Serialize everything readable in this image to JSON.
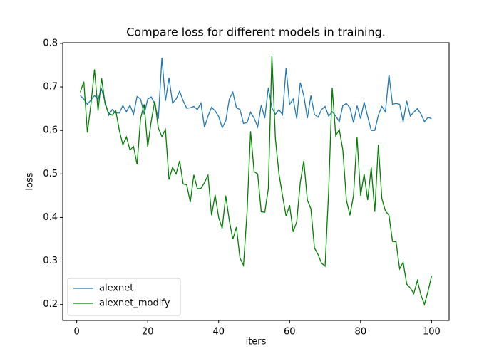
{
  "chart_data": {
    "type": "line",
    "title": "Compare loss for different models in training.",
    "xlabel": "iters",
    "ylabel": "loss",
    "x": [
      1,
      2,
      3,
      4,
      5,
      6,
      7,
      8,
      9,
      10,
      11,
      12,
      13,
      14,
      15,
      16,
      17,
      18,
      19,
      20,
      21,
      22,
      23,
      24,
      25,
      26,
      27,
      28,
      29,
      30,
      31,
      32,
      33,
      34,
      35,
      36,
      37,
      38,
      39,
      40,
      41,
      42,
      43,
      44,
      45,
      46,
      47,
      48,
      49,
      50,
      51,
      52,
      53,
      54,
      55,
      56,
      57,
      58,
      59,
      60,
      61,
      62,
      63,
      64,
      65,
      66,
      67,
      68,
      69,
      70,
      71,
      72,
      73,
      74,
      75,
      76,
      77,
      78,
      79,
      80,
      81,
      82,
      83,
      84,
      85,
      86,
      87,
      88,
      89,
      90,
      91,
      92,
      93,
      94,
      95,
      96,
      97,
      98,
      99,
      100
    ],
    "series": [
      {
        "name": "alexnet",
        "color": "#1f77b4",
        "values": [
          0.68,
          0.672,
          0.66,
          0.67,
          0.68,
          0.672,
          0.695,
          0.665,
          0.635,
          0.648,
          0.64,
          0.64,
          0.657,
          0.643,
          0.658,
          0.637,
          0.678,
          0.672,
          0.637,
          0.672,
          0.677,
          0.66,
          0.627,
          0.767,
          0.668,
          0.721,
          0.663,
          0.672,
          0.69,
          0.668,
          0.651,
          0.652,
          0.655,
          0.648,
          0.663,
          0.607,
          0.633,
          0.653,
          0.645,
          0.632,
          0.606,
          0.622,
          0.672,
          0.688,
          0.652,
          0.648,
          0.616,
          0.618,
          0.642,
          0.628,
          0.608,
          0.658,
          0.628,
          0.698,
          0.652,
          0.637,
          0.648,
          0.636,
          0.743,
          0.66,
          0.672,
          0.627,
          0.71,
          0.68,
          0.628,
          0.68,
          0.637,
          0.63,
          0.648,
          0.655,
          0.633,
          0.643,
          0.633,
          0.62,
          0.657,
          0.662,
          0.652,
          0.618,
          0.657,
          0.627,
          0.665,
          0.632,
          0.6,
          0.6,
          0.635,
          0.655,
          0.643,
          0.728,
          0.66,
          0.662,
          0.66,
          0.62,
          0.668,
          0.633,
          0.642,
          0.65,
          0.638,
          0.62,
          0.63,
          0.627
        ]
      },
      {
        "name": "alexnet_modify",
        "color": "#008000",
        "values": [
          0.688,
          0.712,
          0.595,
          0.66,
          0.74,
          0.645,
          0.72,
          0.66,
          0.64,
          0.635,
          0.645,
          0.6,
          0.567,
          0.585,
          0.555,
          0.563,
          0.522,
          0.628,
          0.66,
          0.562,
          0.622,
          0.667,
          0.605,
          0.586,
          0.602,
          0.487,
          0.515,
          0.5,
          0.53,
          0.477,
          0.475,
          0.435,
          0.498,
          0.466,
          0.467,
          0.48,
          0.497,
          0.405,
          0.452,
          0.4,
          0.375,
          0.45,
          0.393,
          0.35,
          0.378,
          0.307,
          0.29,
          0.412,
          0.598,
          0.505,
          0.5,
          0.413,
          0.412,
          0.466,
          0.772,
          0.58,
          0.5,
          0.45,
          0.403,
          0.428,
          0.367,
          0.39,
          0.48,
          0.53,
          0.44,
          0.42,
          0.33,
          0.315,
          0.295,
          0.288,
          0.46,
          0.698,
          0.588,
          0.602,
          0.555,
          0.44,
          0.405,
          0.45,
          0.585,
          0.45,
          0.5,
          0.44,
          0.515,
          0.413,
          0.567,
          0.443,
          0.415,
          0.405,
          0.345,
          0.344,
          0.282,
          0.297,
          0.247,
          0.238,
          0.225,
          0.255,
          0.222,
          0.2,
          0.23,
          0.265
        ]
      }
    ],
    "xlim": [
      -3.95,
      104.95
    ],
    "xticks": [
      0,
      20,
      40,
      60,
      80,
      100
    ],
    "ylim": [
      0.1635,
      0.8015
    ],
    "yticks": [
      0.2,
      0.3,
      0.4,
      0.5,
      0.6,
      0.7,
      0.8
    ],
    "legend": "lower left"
  }
}
